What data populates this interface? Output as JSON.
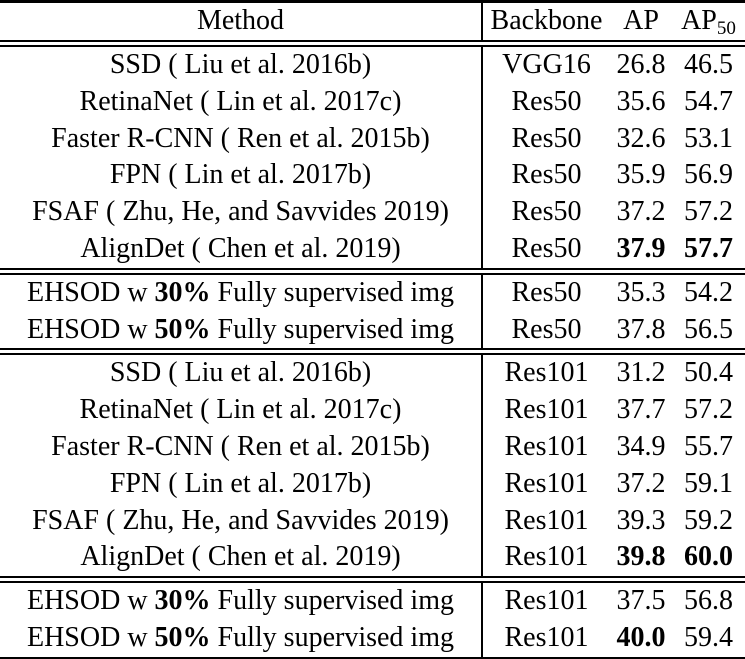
{
  "colors": {
    "background": "#ffffff",
    "text": "#000000",
    "rule": "#000000"
  },
  "table": {
    "headers": {
      "method": "Method",
      "backbone": "Backbone",
      "ap": "AP",
      "ap50_base": "AP",
      "ap50_sub": "50"
    },
    "rows": [
      {
        "method_pre": "SSD ( Liu et al. 2016b)",
        "method_bold": "",
        "method_post": "",
        "backbone": "VGG16",
        "ap": "26.8",
        "ap50": "46.5",
        "ap_bold": false,
        "ap50_bold": false,
        "group_start": false
      },
      {
        "method_pre": "RetinaNet ( Lin et al. 2017c)",
        "method_bold": "",
        "method_post": "",
        "backbone": "Res50",
        "ap": "35.6",
        "ap50": "54.7",
        "ap_bold": false,
        "ap50_bold": false,
        "group_start": false
      },
      {
        "method_pre": "Faster R-CNN ( Ren et al. 2015b)",
        "method_bold": "",
        "method_post": "",
        "backbone": "Res50",
        "ap": "32.6",
        "ap50": "53.1",
        "ap_bold": false,
        "ap50_bold": false,
        "group_start": false
      },
      {
        "method_pre": "FPN ( Lin et al. 2017b)",
        "method_bold": "",
        "method_post": "",
        "backbone": "Res50",
        "ap": "35.9",
        "ap50": "56.9",
        "ap_bold": false,
        "ap50_bold": false,
        "group_start": false
      },
      {
        "method_pre": "FSAF ( Zhu, He, and Savvides 2019)",
        "method_bold": "",
        "method_post": "",
        "backbone": "Res50",
        "ap": "37.2",
        "ap50": "57.2",
        "ap_bold": false,
        "ap50_bold": false,
        "group_start": false
      },
      {
        "method_pre": "AlignDet ( Chen et al. 2019)",
        "method_bold": "",
        "method_post": "",
        "backbone": "Res50",
        "ap": "37.9",
        "ap50": "57.7",
        "ap_bold": true,
        "ap50_bold": true,
        "group_start": false
      },
      {
        "method_pre": "EHSOD w ",
        "method_bold": "30%",
        "method_post": " Fully supervised img",
        "backbone": "Res50",
        "ap": "35.3",
        "ap50": "54.2",
        "ap_bold": false,
        "ap50_bold": false,
        "group_start": true
      },
      {
        "method_pre": "EHSOD w ",
        "method_bold": "50%",
        "method_post": " Fully supervised img",
        "backbone": "Res50",
        "ap": "37.8",
        "ap50": "56.5",
        "ap_bold": false,
        "ap50_bold": false,
        "group_start": false
      },
      {
        "method_pre": "SSD ( Liu et al. 2016b)",
        "method_bold": "",
        "method_post": "",
        "backbone": "Res101",
        "ap": "31.2",
        "ap50": "50.4",
        "ap_bold": false,
        "ap50_bold": false,
        "group_start": true
      },
      {
        "method_pre": "RetinaNet ( Lin et al. 2017c)",
        "method_bold": "",
        "method_post": "",
        "backbone": "Res101",
        "ap": "37.7",
        "ap50": "57.2",
        "ap_bold": false,
        "ap50_bold": false,
        "group_start": false
      },
      {
        "method_pre": "Faster R-CNN ( Ren et al. 2015b)",
        "method_bold": "",
        "method_post": "",
        "backbone": "Res101",
        "ap": "34.9",
        "ap50": "55.7",
        "ap_bold": false,
        "ap50_bold": false,
        "group_start": false
      },
      {
        "method_pre": "FPN ( Lin et al. 2017b)",
        "method_bold": "",
        "method_post": "",
        "backbone": "Res101",
        "ap": "37.2",
        "ap50": "59.1",
        "ap_bold": false,
        "ap50_bold": false,
        "group_start": false
      },
      {
        "method_pre": "FSAF ( Zhu, He, and Savvides 2019)",
        "method_bold": "",
        "method_post": "",
        "backbone": "Res101",
        "ap": "39.3",
        "ap50": "59.2",
        "ap_bold": false,
        "ap50_bold": false,
        "group_start": false
      },
      {
        "method_pre": "AlignDet ( Chen et al. 2019)",
        "method_bold": "",
        "method_post": "",
        "backbone": "Res101",
        "ap": "39.8",
        "ap50": "60.0",
        "ap_bold": true,
        "ap50_bold": true,
        "group_start": false
      },
      {
        "method_pre": "EHSOD w ",
        "method_bold": "30%",
        "method_post": " Fully supervised img",
        "backbone": "Res101",
        "ap": "37.5",
        "ap50": "56.8",
        "ap_bold": false,
        "ap50_bold": false,
        "group_start": true
      },
      {
        "method_pre": "EHSOD w ",
        "method_bold": "50%",
        "method_post": " Fully supervised img",
        "backbone": "Res101",
        "ap": "40.0",
        "ap50": "59.4",
        "ap_bold": true,
        "ap50_bold": false,
        "group_start": false
      }
    ]
  },
  "chart_data": {
    "type": "table",
    "title": "Detection results: AP and AP50 by method and backbone",
    "columns": [
      "Method",
      "Backbone",
      "AP",
      "AP50"
    ],
    "rows": [
      [
        "SSD ( Liu et al. 2016b)",
        "VGG16",
        26.8,
        46.5
      ],
      [
        "RetinaNet ( Lin et al. 2017c)",
        "Res50",
        35.6,
        54.7
      ],
      [
        "Faster R-CNN ( Ren et al. 2015b)",
        "Res50",
        32.6,
        53.1
      ],
      [
        "FPN ( Lin et al. 2017b)",
        "Res50",
        35.9,
        56.9
      ],
      [
        "FSAF ( Zhu, He, and Savvides 2019)",
        "Res50",
        37.2,
        57.2
      ],
      [
        "AlignDet ( Chen et al. 2019)",
        "Res50",
        37.9,
        57.7
      ],
      [
        "EHSOD w 30% Fully supervised img",
        "Res50",
        35.3,
        54.2
      ],
      [
        "EHSOD w 50% Fully supervised img",
        "Res50",
        37.8,
        56.5
      ],
      [
        "SSD ( Liu et al. 2016b)",
        "Res101",
        31.2,
        50.4
      ],
      [
        "RetinaNet ( Lin et al. 2017c)",
        "Res101",
        37.7,
        57.2
      ],
      [
        "Faster R-CNN ( Ren et al. 2015b)",
        "Res101",
        34.9,
        55.7
      ],
      [
        "FPN ( Lin et al. 2017b)",
        "Res101",
        37.2,
        59.1
      ],
      [
        "FSAF ( Zhu, He, and Savvides 2019)",
        "Res101",
        39.3,
        59.2
      ],
      [
        "AlignDet ( Chen et al. 2019)",
        "Res101",
        39.8,
        60.0
      ],
      [
        "EHSOD w 30% Fully supervised img",
        "Res101",
        37.5,
        56.8
      ],
      [
        "EHSOD w 50% Fully supervised img",
        "Res101",
        40.0,
        59.4
      ]
    ]
  }
}
